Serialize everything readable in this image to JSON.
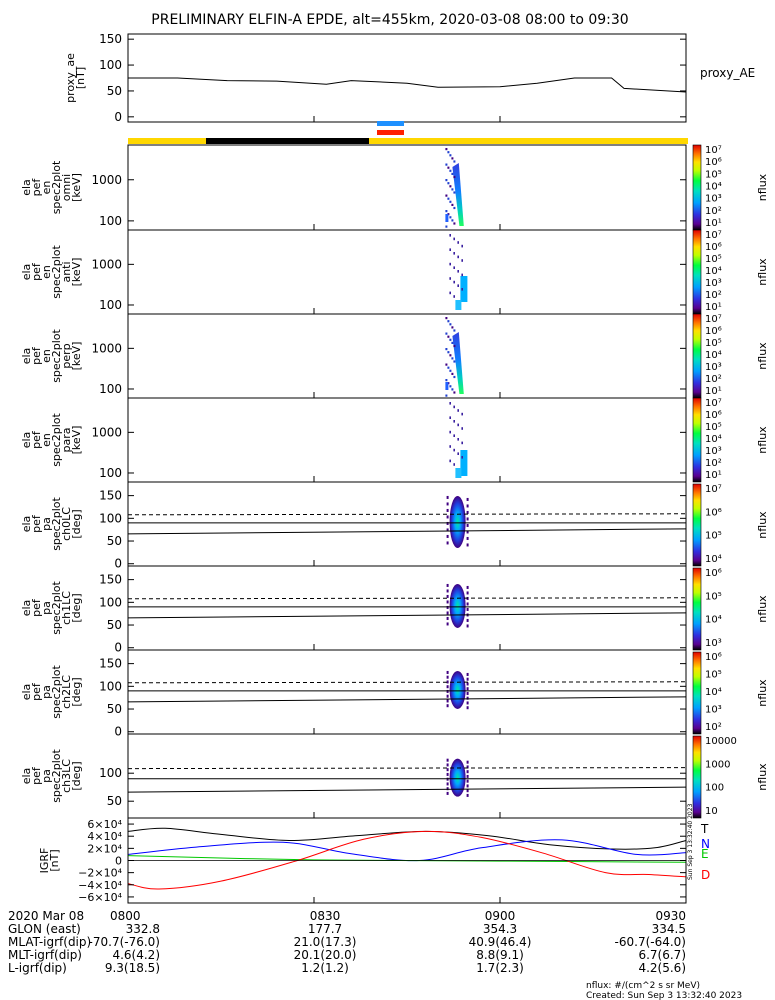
{
  "title": "PRELIMINARY ELFIN-A EPDE, alt=455km, 2020-03-08 08:00 to 09:30",
  "panels": [
    {
      "id": "proxy",
      "ylabel": [
        "proxy_ae",
        "[nT]"
      ],
      "ticks": [
        "150",
        "100",
        "50",
        "0"
      ],
      "right_label": "proxy_AE"
    },
    {
      "id": "omni",
      "ylabel": [
        "ela",
        "pef",
        "en",
        "spec2plot",
        "omni",
        "[keV]"
      ],
      "ticks": [
        "1000",
        "100"
      ],
      "cb_unit": "nflux"
    },
    {
      "id": "anti",
      "ylabel": [
        "ela",
        "pef",
        "en",
        "spec2plot",
        "anti",
        "[keV]"
      ],
      "ticks": [
        "1000",
        "100"
      ],
      "cb_unit": "nflux"
    },
    {
      "id": "perp",
      "ylabel": [
        "ela",
        "pef",
        "en",
        "spec2plot",
        "perp",
        "[keV]"
      ],
      "ticks": [
        "1000",
        "100"
      ],
      "cb_unit": "nflux"
    },
    {
      "id": "para",
      "ylabel": [
        "ela",
        "pef",
        "en",
        "spec2plot",
        "para",
        "[keV]"
      ],
      "ticks": [
        "1000",
        "100"
      ],
      "cb_unit": "nflux"
    },
    {
      "id": "ch0",
      "ylabel": [
        "ela",
        "pef",
        "pa",
        "spec2plot",
        "ch0LC",
        "[deg]"
      ],
      "ticks": [
        "150",
        "100",
        "50",
        "0"
      ],
      "cb_unit": "nflux"
    },
    {
      "id": "ch1",
      "ylabel": [
        "ela",
        "pef",
        "pa",
        "spec2plot",
        "ch1LC",
        "[deg]"
      ],
      "ticks": [
        "150",
        "100",
        "50",
        "0"
      ],
      "cb_unit": "nflux"
    },
    {
      "id": "ch2",
      "ylabel": [
        "ela",
        "pef",
        "pa",
        "spec2plot",
        "ch2LC",
        "[deg]"
      ],
      "ticks": [
        "150",
        "100",
        "50",
        "0"
      ],
      "cb_unit": "nflux"
    },
    {
      "id": "ch3",
      "ylabel": [
        "ela",
        "pef",
        "pa",
        "spec2plot",
        "ch3LC",
        "[deg]"
      ],
      "ticks": [
        "100",
        "50"
      ],
      "cb_unit": "nflux"
    },
    {
      "id": "igrf",
      "ylabel": [
        "IGRF",
        "[nT]"
      ],
      "ticks": [
        "6×10⁴",
        "4×10⁴",
        "2×10⁴",
        "0",
        "−2×10⁴",
        "−4×10⁴",
        "−6×10⁴"
      ]
    }
  ],
  "colorbars": [
    {
      "labels": [
        "10⁷",
        "10⁶",
        "10⁵",
        "10⁴",
        "10³",
        "10²",
        "10¹"
      ]
    },
    {
      "labels": [
        "10⁷",
        "10⁶",
        "10⁵",
        "10⁴",
        "10³",
        "10²",
        "10¹"
      ]
    },
    {
      "labels": [
        "10⁷",
        "10⁶",
        "10⁵",
        "10⁴",
        "10³",
        "10²",
        "10¹"
      ]
    },
    {
      "labels": [
        "10⁷",
        "10⁶",
        "10⁵",
        "10⁴",
        "10³",
        "10²",
        "10¹"
      ]
    },
    {
      "labels": [
        "10⁷",
        "10⁶",
        "10⁵",
        "10⁴"
      ]
    },
    {
      "labels": [
        "10⁶",
        "10⁵",
        "10⁴",
        "10³"
      ]
    },
    {
      "labels": [
        "10⁶",
        "10⁵",
        "10⁴",
        "10³",
        "10²"
      ]
    },
    {
      "labels": [
        "10000",
        "1000",
        "100",
        "10"
      ]
    }
  ],
  "chart_data": [
    {
      "type": "line",
      "panel": "proxy",
      "title": "PRELIMINARY ELFIN-A EPDE, alt=455km, 2020-03-08 08:00 to 09:30",
      "ylabel": "proxy_ae [nT]",
      "ylim": [
        0,
        150
      ],
      "series": [
        {
          "name": "proxy_AE",
          "x": [
            "08:00",
            "08:08",
            "08:16",
            "08:24",
            "08:32",
            "08:36",
            "08:45",
            "08:50",
            "09:00",
            "09:06",
            "09:12",
            "09:18",
            "09:20",
            "09:30"
          ],
          "y": [
            75,
            75,
            70,
            69,
            63,
            70,
            65,
            57,
            58,
            65,
            75,
            75,
            55,
            48
          ]
        }
      ]
    },
    {
      "type": "heatmap",
      "panel": "omni",
      "ylabel": "ela pef en spec2plot omni [keV]",
      "yscale": "log",
      "ylim": [
        60,
        7000
      ],
      "time_window": [
        "08:51",
        "08:54"
      ],
      "zscale": "log",
      "zlim": [
        10,
        10000000
      ],
      "zlabel": "nflux"
    },
    {
      "type": "heatmap",
      "panel": "anti",
      "ylabel": "ela pef en spec2plot anti [keV]",
      "yscale": "log",
      "ylim": [
        60,
        7000
      ],
      "time_window": [
        "08:51",
        "08:54"
      ],
      "zscale": "log",
      "zlim": [
        10,
        10000000
      ],
      "zlabel": "nflux"
    },
    {
      "type": "heatmap",
      "panel": "perp",
      "ylabel": "ela pef en spec2plot perp [keV]",
      "yscale": "log",
      "ylim": [
        60,
        7000
      ],
      "time_window": [
        "08:51",
        "08:54"
      ],
      "zscale": "log",
      "zlim": [
        10,
        10000000
      ],
      "zlabel": "nflux"
    },
    {
      "type": "heatmap",
      "panel": "para",
      "ylabel": "ela pef en spec2plot para [keV]",
      "yscale": "log",
      "ylim": [
        60,
        7000
      ],
      "time_window": [
        "08:51",
        "08:54"
      ],
      "zscale": "log",
      "zlim": [
        10,
        10000000
      ],
      "zlabel": "nflux"
    },
    {
      "type": "heatmap",
      "panel": "ch0",
      "ylabel": "ela pef pa spec2plot ch0LC [deg]",
      "ylim": [
        0,
        180
      ],
      "time_window": [
        "08:52",
        "08:54"
      ],
      "pa_range": [
        20,
        155
      ],
      "zlabel": "nflux"
    },
    {
      "type": "heatmap",
      "panel": "ch1",
      "ylabel": "ela pef pa spec2plot ch1LC [deg]",
      "ylim": [
        0,
        180
      ],
      "time_window": [
        "08:52",
        "08:54"
      ],
      "pa_range": [
        30,
        150
      ],
      "zlabel": "nflux"
    },
    {
      "type": "heatmap",
      "panel": "ch2",
      "ylabel": "ela pef pa spec2plot ch2LC [deg]",
      "ylim": [
        0,
        180
      ],
      "time_window": [
        "08:52",
        "08:54"
      ],
      "pa_range": [
        40,
        145
      ],
      "zlabel": "nflux"
    },
    {
      "type": "heatmap",
      "panel": "ch3",
      "ylabel": "ela pef pa spec2plot ch3LC [deg]",
      "ylim": [
        20,
        170
      ],
      "time_window": [
        "08:52",
        "08:54"
      ],
      "pa_range": [
        35,
        140
      ],
      "zlabel": "nflux"
    },
    {
      "type": "line",
      "panel": "igrf",
      "ylabel": "IGRF [nT]",
      "ylim": [
        -60000,
        60000
      ],
      "series": [
        {
          "name": "T",
          "color": "#000000",
          "x": [
            "08:00",
            "08:06",
            "08:15",
            "08:26",
            "08:37",
            "08:48",
            "08:58",
            "09:08",
            "09:18",
            "09:25",
            "09:30"
          ],
          "y": [
            48000,
            53000,
            43000,
            33000,
            41000,
            48000,
            41000,
            26000,
            19000,
            21000,
            33000
          ]
        },
        {
          "name": "N",
          "color": "#0000ff",
          "x": [
            "08:00",
            "08:11",
            "08:25",
            "08:36",
            "08:47",
            "08:57",
            "09:10",
            "09:22",
            "09:30"
          ],
          "y": [
            10000,
            22000,
            30000,
            11000,
            0,
            21000,
            34000,
            10000,
            13000
          ]
        },
        {
          "name": "E",
          "color": "#00c800",
          "x": [
            "08:00",
            "08:30",
            "09:00",
            "09:30"
          ],
          "y": [
            8000,
            1000,
            -1000,
            -3000
          ]
        },
        {
          "name": "D",
          "color": "#ff0000",
          "x": [
            "08:00",
            "08:05",
            "08:15",
            "08:27",
            "08:38",
            "08:48",
            "08:57",
            "09:07",
            "09:17",
            "09:24",
            "09:30"
          ],
          "y": [
            -38000,
            -47000,
            -34000,
            -1000,
            35000,
            48000,
            38000,
            12000,
            -20000,
            -23000,
            -27000
          ]
        }
      ]
    }
  ],
  "xaxis": {
    "tick_labels": [
      "0800",
      "0830",
      "0900",
      "0930"
    ]
  },
  "orbit_table": {
    "rows": [
      {
        "label": "2020 Mar 08",
        "values": [
          "",
          "",
          "",
          ""
        ]
      },
      {
        "label": "GLON (east)",
        "values": [
          "332.8",
          "177.7",
          "354.3",
          "334.5"
        ]
      },
      {
        "label": "MLAT-igrf(dip)",
        "values": [
          "-70.7(-76.0)",
          "21.0(17.3)",
          "40.9(46.4)",
          "-60.7(-64.0)"
        ]
      },
      {
        "label": "MLT-igrf(dip)",
        "values": [
          "4.6(4.2)",
          "20.1(20.0)",
          "8.8(9.1)",
          "6.7(6.7)"
        ]
      },
      {
        "label": "L-igrf(dip)",
        "values": [
          "9.3(18.5)",
          "1.2(1.2)",
          "1.7(2.3)",
          "4.2(5.6)"
        ]
      }
    ]
  },
  "footer": {
    "units": "nflux: #/(cm^2 s sr MeV)",
    "created": "Created: Sun Sep  3 13:32:40 2023",
    "vertical": "Sun Sep  3 13:32:40 2023"
  },
  "legend_igrf": [
    "T",
    "N",
    "E",
    "D"
  ],
  "colors": {
    "yellow": "#ffd700",
    "black": "#000000",
    "blue": "#1e90ff",
    "red": "#ff2000"
  }
}
